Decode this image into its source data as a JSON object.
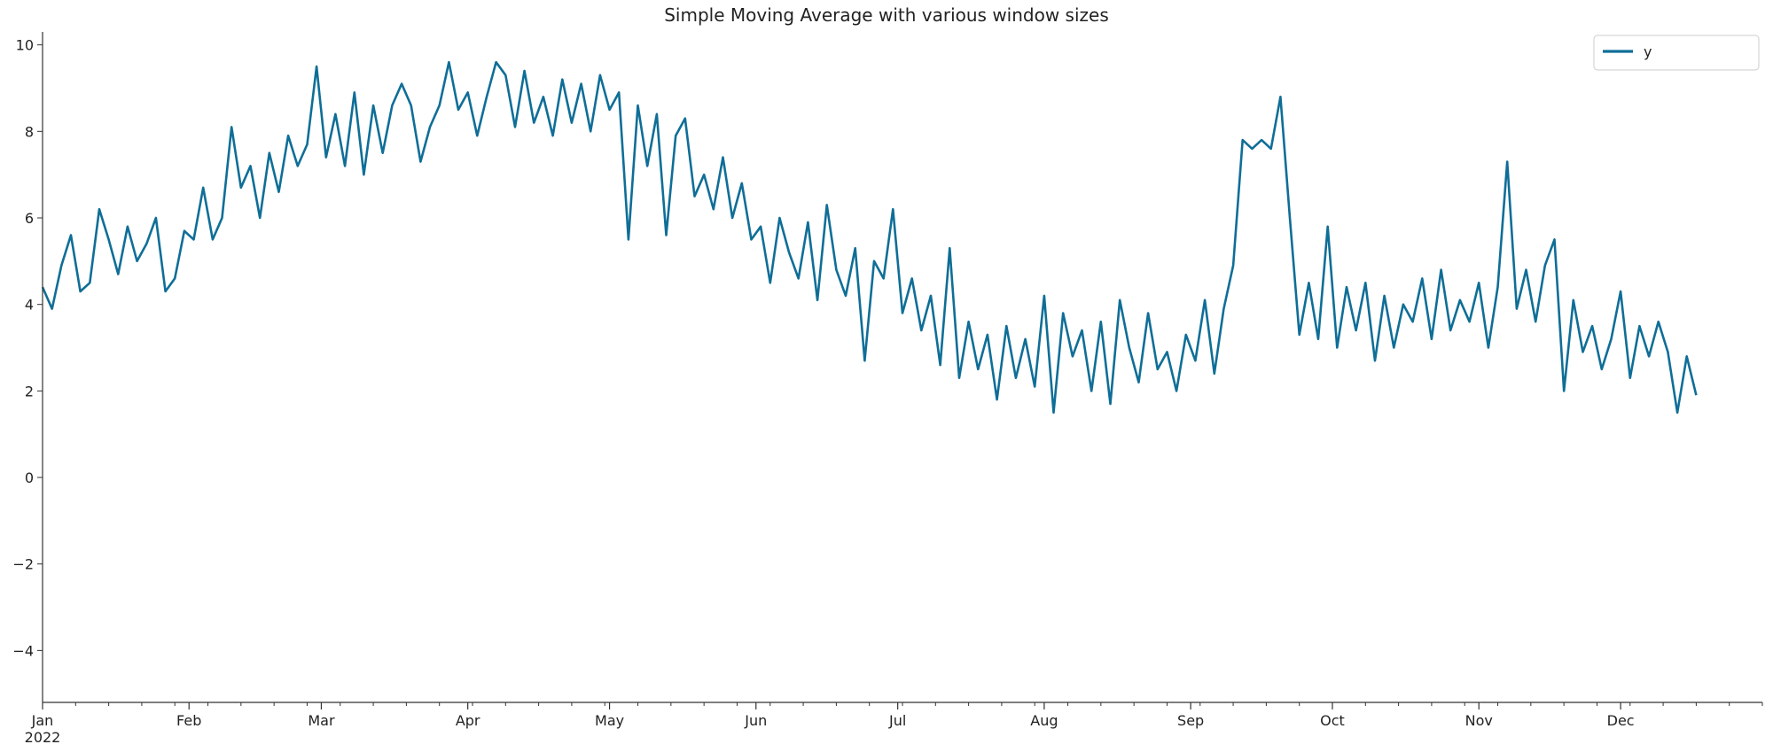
{
  "chart_data": {
    "type": "line",
    "title": "Simple Moving Average with various window sizes",
    "xlabel": "",
    "ylabel": "",
    "x_start": "2022-01-01",
    "x_end": "2022-12-31",
    "ylim": [
      -5.2,
      10.3
    ],
    "grid": false,
    "legend_position": "top-right",
    "x_tick_labels": [
      {
        "date": "2022-01-01",
        "label": "Jan",
        "sublabel": "2022"
      },
      {
        "date": "2022-02-01",
        "label": "Feb"
      },
      {
        "date": "2022-03-01",
        "label": "Mar"
      },
      {
        "date": "2022-04-01",
        "label": "Apr"
      },
      {
        "date": "2022-05-01",
        "label": "May"
      },
      {
        "date": "2022-06-01",
        "label": "Jun"
      },
      {
        "date": "2022-07-01",
        "label": "Jul"
      },
      {
        "date": "2022-08-01",
        "label": "Aug"
      },
      {
        "date": "2022-09-01",
        "label": "Sep"
      },
      {
        "date": "2022-10-01",
        "label": "Oct"
      },
      {
        "date": "2022-11-01",
        "label": "Nov"
      },
      {
        "date": "2022-12-01",
        "label": "Dec"
      }
    ],
    "y_ticks": [
      -4,
      -2,
      0,
      2,
      4,
      6,
      8,
      10
    ],
    "y_tick_labels": [
      "−4",
      "−2",
      "0",
      "2",
      "4",
      "6",
      "8",
      "10"
    ],
    "series": [
      {
        "name": "y",
        "color": "#0f6e97",
        "width": 2.6,
        "points": [
          [
            "2022-01-01",
            4.4
          ],
          [
            "2022-01-03",
            3.9
          ],
          [
            "2022-01-05",
            4.9
          ],
          [
            "2022-01-07",
            5.6
          ],
          [
            "2022-01-09",
            4.3
          ],
          [
            "2022-01-11",
            4.5
          ],
          [
            "2022-01-13",
            6.2
          ],
          [
            "2022-01-15",
            5.5
          ],
          [
            "2022-01-17",
            4.7
          ],
          [
            "2022-01-19",
            5.8
          ],
          [
            "2022-01-21",
            5.0
          ],
          [
            "2022-01-23",
            5.4
          ],
          [
            "2022-01-25",
            6.0
          ],
          [
            "2022-01-27",
            4.3
          ],
          [
            "2022-01-29",
            4.6
          ],
          [
            "2022-01-31",
            5.7
          ],
          [
            "2022-02-02",
            5.5
          ],
          [
            "2022-02-04",
            6.7
          ],
          [
            "2022-02-06",
            5.5
          ],
          [
            "2022-02-08",
            6.0
          ],
          [
            "2022-02-10",
            8.1
          ],
          [
            "2022-02-12",
            6.7
          ],
          [
            "2022-02-14",
            7.2
          ],
          [
            "2022-02-16",
            6.0
          ],
          [
            "2022-02-18",
            7.5
          ],
          [
            "2022-02-20",
            6.6
          ],
          [
            "2022-02-22",
            7.9
          ],
          [
            "2022-02-24",
            7.2
          ],
          [
            "2022-02-26",
            7.7
          ],
          [
            "2022-02-28",
            9.5
          ],
          [
            "2022-03-02",
            7.4
          ],
          [
            "2022-03-04",
            8.4
          ],
          [
            "2022-03-06",
            7.2
          ],
          [
            "2022-03-08",
            8.9
          ],
          [
            "2022-03-10",
            7.0
          ],
          [
            "2022-03-12",
            8.6
          ],
          [
            "2022-03-14",
            7.5
          ],
          [
            "2022-03-16",
            8.6
          ],
          [
            "2022-03-18",
            9.1
          ],
          [
            "2022-03-20",
            8.6
          ],
          [
            "2022-03-22",
            7.3
          ],
          [
            "2022-03-24",
            8.1
          ],
          [
            "2022-03-26",
            8.6
          ],
          [
            "2022-03-28",
            9.6
          ],
          [
            "2022-03-30",
            8.5
          ],
          [
            "2022-04-01",
            8.9
          ],
          [
            "2022-04-03",
            7.9
          ],
          [
            "2022-04-05",
            8.8
          ],
          [
            "2022-04-07",
            9.6
          ],
          [
            "2022-04-09",
            9.3
          ],
          [
            "2022-04-11",
            8.1
          ],
          [
            "2022-04-13",
            9.4
          ],
          [
            "2022-04-15",
            8.2
          ],
          [
            "2022-04-17",
            8.8
          ],
          [
            "2022-04-19",
            7.9
          ],
          [
            "2022-04-21",
            9.2
          ],
          [
            "2022-04-23",
            8.2
          ],
          [
            "2022-04-25",
            9.1
          ],
          [
            "2022-04-27",
            8.0
          ],
          [
            "2022-04-29",
            9.3
          ],
          [
            "2022-05-01",
            8.5
          ],
          [
            "2022-05-03",
            8.9
          ],
          [
            "2022-05-05",
            5.5
          ],
          [
            "2022-05-07",
            8.6
          ],
          [
            "2022-05-09",
            7.2
          ],
          [
            "2022-05-11",
            8.4
          ],
          [
            "2022-05-13",
            5.6
          ],
          [
            "2022-05-15",
            7.9
          ],
          [
            "2022-05-17",
            8.3
          ],
          [
            "2022-05-19",
            6.5
          ],
          [
            "2022-05-21",
            7.0
          ],
          [
            "2022-05-23",
            6.2
          ],
          [
            "2022-05-25",
            7.4
          ],
          [
            "2022-05-27",
            6.0
          ],
          [
            "2022-05-29",
            6.8
          ],
          [
            "2022-05-31",
            5.5
          ],
          [
            "2022-06-02",
            5.8
          ],
          [
            "2022-06-04",
            4.5
          ],
          [
            "2022-06-06",
            6.0
          ],
          [
            "2022-06-08",
            5.2
          ],
          [
            "2022-06-10",
            4.6
          ],
          [
            "2022-06-12",
            5.9
          ],
          [
            "2022-06-14",
            4.1
          ],
          [
            "2022-06-16",
            6.3
          ],
          [
            "2022-06-18",
            4.8
          ],
          [
            "2022-06-20",
            4.2
          ],
          [
            "2022-06-22",
            5.3
          ],
          [
            "2022-06-24",
            2.7
          ],
          [
            "2022-06-26",
            5.0
          ],
          [
            "2022-06-28",
            4.6
          ],
          [
            "2022-06-30",
            6.2
          ],
          [
            "2022-07-02",
            3.8
          ],
          [
            "2022-07-04",
            4.6
          ],
          [
            "2022-07-06",
            3.4
          ],
          [
            "2022-07-08",
            4.2
          ],
          [
            "2022-07-10",
            2.6
          ],
          [
            "2022-07-12",
            5.3
          ],
          [
            "2022-07-14",
            2.3
          ],
          [
            "2022-07-16",
            3.6
          ],
          [
            "2022-07-18",
            2.5
          ],
          [
            "2022-07-20",
            3.3
          ],
          [
            "2022-07-22",
            1.8
          ],
          [
            "2022-07-24",
            3.5
          ],
          [
            "2022-07-26",
            2.3
          ],
          [
            "2022-07-28",
            3.2
          ],
          [
            "2022-07-30",
            2.1
          ],
          [
            "2022-08-01",
            4.2
          ],
          [
            "2022-08-03",
            1.5
          ],
          [
            "2022-08-05",
            3.8
          ],
          [
            "2022-08-07",
            2.8
          ],
          [
            "2022-08-09",
            3.4
          ],
          [
            "2022-08-11",
            2.0
          ],
          [
            "2022-08-13",
            3.6
          ],
          [
            "2022-08-15",
            1.7
          ],
          [
            "2022-08-17",
            4.1
          ],
          [
            "2022-08-19",
            3.0
          ],
          [
            "2022-08-21",
            2.2
          ],
          [
            "2022-08-23",
            3.8
          ],
          [
            "2022-08-25",
            2.5
          ],
          [
            "2022-08-27",
            2.9
          ],
          [
            "2022-08-29",
            2.0
          ],
          [
            "2022-08-31",
            3.3
          ],
          [
            "2022-09-02",
            2.7
          ],
          [
            "2022-09-04",
            4.1
          ],
          [
            "2022-09-06",
            2.4
          ],
          [
            "2022-09-08",
            3.9
          ],
          [
            "2022-09-10",
            4.9
          ],
          [
            "2022-09-12",
            7.8
          ],
          [
            "2022-09-14",
            7.6
          ],
          [
            "2022-09-16",
            7.8
          ],
          [
            "2022-09-18",
            7.6
          ],
          [
            "2022-09-20",
            8.8
          ],
          [
            "2022-09-22",
            6.0
          ],
          [
            "2022-09-24",
            3.3
          ],
          [
            "2022-09-26",
            4.5
          ],
          [
            "2022-09-28",
            3.2
          ],
          [
            "2022-09-30",
            5.8
          ],
          [
            "2022-10-02",
            3.0
          ],
          [
            "2022-10-04",
            4.4
          ],
          [
            "2022-10-06",
            3.4
          ],
          [
            "2022-10-08",
            4.5
          ],
          [
            "2022-10-10",
            2.7
          ],
          [
            "2022-10-12",
            4.2
          ],
          [
            "2022-10-14",
            3.0
          ],
          [
            "2022-10-16",
            4.0
          ],
          [
            "2022-10-18",
            3.6
          ],
          [
            "2022-10-20",
            4.6
          ],
          [
            "2022-10-22",
            3.2
          ],
          [
            "2022-10-24",
            4.8
          ],
          [
            "2022-10-26",
            3.4
          ],
          [
            "2022-10-28",
            4.1
          ],
          [
            "2022-10-30",
            3.6
          ],
          [
            "2022-11-01",
            4.5
          ],
          [
            "2022-11-03",
            3.0
          ],
          [
            "2022-11-05",
            4.4
          ],
          [
            "2022-11-07",
            7.3
          ],
          [
            "2022-11-09",
            3.9
          ],
          [
            "2022-11-11",
            4.8
          ],
          [
            "2022-11-13",
            3.6
          ],
          [
            "2022-11-15",
            4.9
          ],
          [
            "2022-11-17",
            5.5
          ],
          [
            "2022-11-19",
            2.0
          ],
          [
            "2022-11-21",
            4.1
          ],
          [
            "2022-11-23",
            2.9
          ],
          [
            "2022-11-25",
            3.5
          ],
          [
            "2022-11-27",
            2.5
          ],
          [
            "2022-11-29",
            3.2
          ],
          [
            "2022-12-01",
            4.3
          ],
          [
            "2022-12-03",
            2.3
          ],
          [
            "2022-12-05",
            3.5
          ],
          [
            "2022-12-07",
            2.8
          ],
          [
            "2022-12-09",
            3.6
          ],
          [
            "2022-12-11",
            2.9
          ],
          [
            "2022-12-13",
            1.5
          ],
          [
            "2022-12-15",
            2.8
          ],
          [
            "2022-12-17",
            1.9
          ]
        ]
      }
    ]
  }
}
